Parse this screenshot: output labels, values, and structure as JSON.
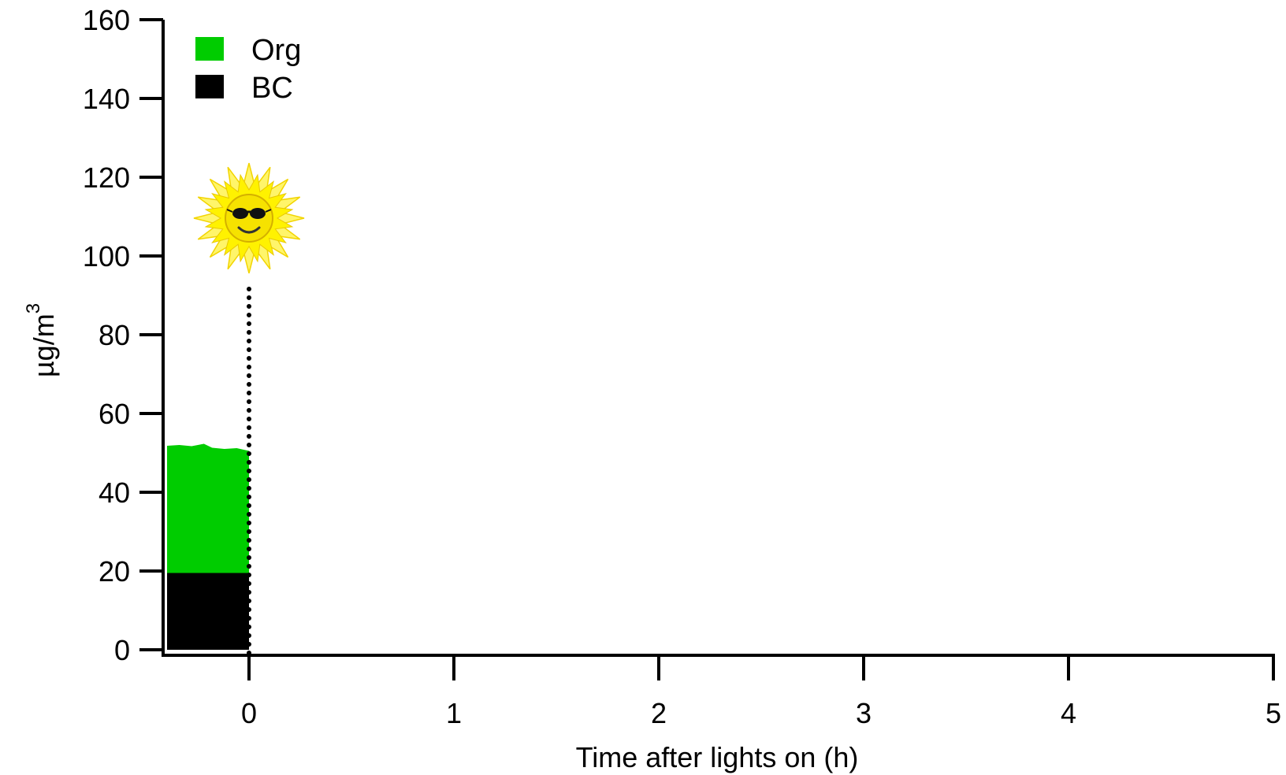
{
  "chart_data": {
    "type": "area",
    "stacked": true,
    "x_range": [
      -0.42,
      5
    ],
    "y_range": [
      0,
      160
    ],
    "x_ticks": [
      "0",
      "1",
      "2",
      "3",
      "4",
      "5"
    ],
    "y_ticks": [
      "0",
      "20",
      "40",
      "60",
      "80",
      "100",
      "120",
      "140",
      "160"
    ],
    "xlabel": "Time after lights on (h)",
    "ylabel": "µg/m",
    "ylabel_superscript": "3",
    "series": [
      {
        "name": "BC",
        "color": "#000000",
        "x": [
          -0.4,
          -0.3,
          -0.2,
          -0.1,
          0
        ],
        "y": [
          19.5,
          19.5,
          19.5,
          19.5,
          19.5
        ]
      },
      {
        "name": "Org",
        "color": "#00cc00",
        "x": [
          -0.4,
          -0.34,
          -0.28,
          -0.22,
          -0.18,
          -0.12,
          -0.06,
          0
        ],
        "y": [
          32.3,
          32.5,
          32.2,
          32.8,
          31.8,
          31.5,
          31.7,
          31.0
        ]
      }
    ],
    "annotations": [
      {
        "type": "vertical-dotted-line",
        "x": 0,
        "y_from": 0,
        "y_to": 93
      },
      {
        "type": "image",
        "icon": "sun-with-sunglasses-icon",
        "x": 0,
        "y": 115
      }
    ],
    "legend": {
      "position": "top-left",
      "entries": [
        "Org",
        "BC"
      ]
    },
    "grid": false
  }
}
